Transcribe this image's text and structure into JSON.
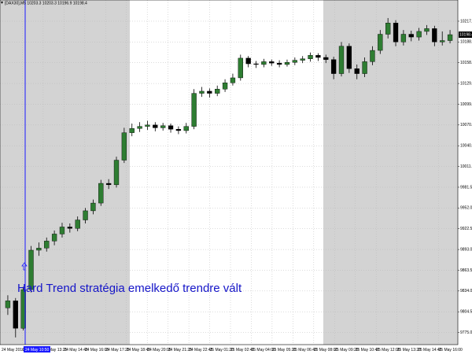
{
  "chart_data": {
    "type": "candlestick",
    "title": "[DAX30],M5 10203.3 10203.3 10196.9 10198.4",
    "annotation": "Hard Trend stratégia emelkedő trendre vált",
    "cursor_label": "24 May 10:50",
    "last_price": 10198.4,
    "up_color": "#2e7d32",
    "down_color": "#000000",
    "grid": true,
    "ylim": [
      9760,
      10232
    ],
    "yticks": [
      {
        "value": 9775,
        "label": "9775.0"
      },
      9804.5,
      {
        "value": 9834,
        "label": "9834.0"
      },
      9863.5,
      {
        "value": 9893,
        "label": "9893.0"
      },
      9922.5,
      {
        "value": 9952,
        "label": "9952.0"
      },
      9981.5,
      {
        "value": 10011,
        "label": "10011.0"
      },
      10040.5,
      {
        "value": 10070,
        "label": "10070.0"
      },
      10099.5,
      {
        "value": 10129,
        "label": "10129.0"
      },
      10158.5,
      {
        "value": 10188,
        "label": "10188.0"
      },
      10217.5
    ],
    "x_labels": [
      "24 May 2016",
      "24 May 12:05",
      "24 May 13:25",
      "24 May 14:45",
      "24 May 16:05",
      "24 May 17:25",
      "24 May 18:45",
      "24 May 20:05",
      "24 May 21:25",
      "24 May 22:45",
      "25 May 01:20",
      "25 May 02:40",
      "25 May 04:00",
      "25 May 05:20",
      "25 May 06:40",
      "25 May 08:00",
      "25 May 09:20",
      "25 May 10:40",
      "25 May 12:00",
      "25 May 13:20",
      "25 May 14:40",
      "25 May 16:00"
    ],
    "open": [
      9810,
      9820,
      9781,
      9836,
      9892,
      9895,
      9905,
      9915,
      9925,
      9923,
      9935,
      9948,
      9959,
      9987,
      9985,
      10020,
      10059,
      10065,
      10068,
      10070,
      10066,
      10069,
      10064,
      10062,
      10068,
      10115,
      10118,
      10115,
      10121,
      10130,
      10137,
      10165,
      10157,
      10156,
      10160,
      10158,
      10156,
      10159,
      10162,
      10164,
      10169,
      10166,
      10163,
      10143,
      10182,
      10150,
      10143,
      10160,
      10176,
      10199,
      10215,
      10188,
      10199,
      10195,
      10203,
      10207,
      10188,
      10190
    ],
    "high": [
      9828,
      9824,
      9840,
      9898,
      9903,
      9910,
      9920,
      9931,
      9930,
      9940,
      9952,
      9964,
      9992,
      9993,
      10025,
      10066,
      10072,
      10074,
      10076,
      10074,
      10073,
      10072,
      10068,
      10073,
      10121,
      10124,
      10122,
      10126,
      10135,
      10143,
      10170,
      10168,
      10161,
      10164,
      10163,
      10162,
      10163,
      10166,
      10168,
      10173,
      10172,
      10170,
      10167,
      10188,
      10186,
      10156,
      10166,
      10182,
      10205,
      10222,
      10219,
      10205,
      10204,
      10208,
      10212,
      10211,
      10203,
      10205
    ],
    "low": [
      9800,
      9768,
      9778,
      9832,
      9884,
      9890,
      9899,
      9910,
      9917,
      9919,
      9930,
      9943,
      9955,
      9979,
      9981,
      10016,
      10054,
      10060,
      10063,
      10061,
      10062,
      10059,
      10057,
      10058,
      10064,
      10110,
      10109,
      10111,
      10117,
      10126,
      10133,
      10152,
      10151,
      10152,
      10154,
      10152,
      10153,
      10155,
      10158,
      10160,
      10161,
      10158,
      10135,
      10139,
      10144,
      10135,
      10138,
      10155,
      10171,
      10193,
      10182,
      10183,
      10189,
      10190,
      10198,
      10182,
      10183,
      10186
    ],
    "close": [
      9820,
      9781,
      9836,
      9892,
      9895,
      9905,
      9915,
      9925,
      9923,
      9935,
      9948,
      9959,
      9987,
      9985,
      10020,
      10059,
      10065,
      10068,
      10070,
      10066,
      10069,
      10064,
      10062,
      10068,
      10115,
      10118,
      10115,
      10121,
      10130,
      10137,
      10165,
      10157,
      10156,
      10160,
      10158,
      10156,
      10159,
      10162,
      10164,
      10169,
      10166,
      10163,
      10143,
      10182,
      10150,
      10143,
      10160,
      10176,
      10199,
      10215,
      10188,
      10199,
      10195,
      10203,
      10207,
      10188,
      10190,
      10198.4
    ]
  }
}
